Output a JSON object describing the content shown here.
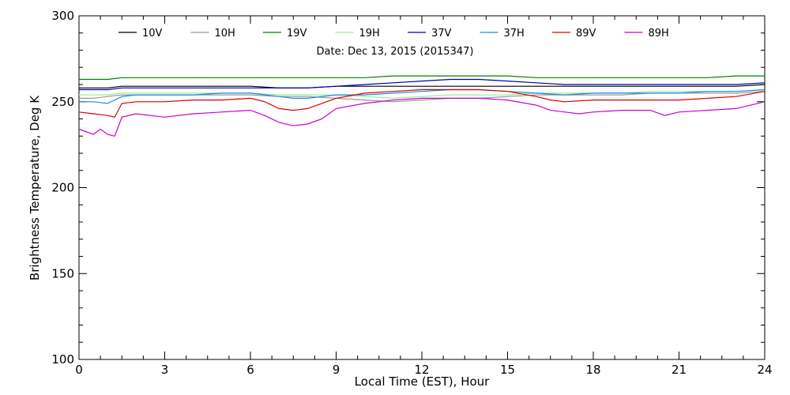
{
  "chart_data": {
    "type": "line",
    "date_label": "Date: Dec 13, 2015 (2015347)",
    "xlabel": "Local Time (EST), Hour",
    "ylabel": "Brightness Temperature, Deg K",
    "xlim": [
      0,
      24
    ],
    "ylim": [
      100,
      300
    ],
    "xticks": [
      0,
      3,
      6,
      9,
      12,
      15,
      18,
      21,
      24
    ],
    "yticks": [
      100,
      150,
      200,
      250,
      300
    ],
    "grid": false,
    "legend_position": "top",
    "series": [
      {
        "name": "10V",
        "color": "#000000",
        "x": [
          0,
          0.5,
          1,
          1.5,
          2,
          3,
          4,
          5,
          6,
          7,
          7.5,
          8,
          9,
          10,
          11,
          12,
          13,
          14,
          15,
          16,
          17,
          18,
          19,
          20,
          21,
          22,
          23,
          24
        ],
        "y": [
          258,
          258,
          258,
          259,
          259,
          259,
          259,
          259,
          259,
          258,
          258,
          258,
          259,
          259,
          259,
          259,
          259,
          259,
          259,
          259,
          259,
          259,
          259,
          259,
          259,
          259,
          259,
          260
        ]
      },
      {
        "name": "10H",
        "color": "#999999",
        "x": [
          0,
          0.5,
          1,
          1.5,
          2,
          3,
          4,
          5,
          6,
          7,
          7.5,
          8,
          9,
          10,
          11,
          12,
          13,
          14,
          15,
          16,
          17,
          18,
          19,
          20,
          21,
          22,
          23,
          24
        ],
        "y": [
          252,
          252,
          253,
          254,
          254,
          254,
          254,
          254,
          254,
          253,
          253,
          253,
          252,
          251,
          250,
          251,
          252,
          252,
          253,
          254,
          254,
          254,
          254,
          255,
          255,
          255,
          255,
          256
        ]
      },
      {
        "name": "19V",
        "color": "#008000",
        "x": [
          0,
          0.5,
          1,
          1.5,
          2,
          3,
          4,
          5,
          6,
          7,
          7.5,
          8,
          9,
          10,
          11,
          12,
          13,
          14,
          15,
          16,
          17,
          18,
          19,
          20,
          21,
          22,
          23,
          24
        ],
        "y": [
          263,
          263,
          263,
          264,
          264,
          264,
          264,
          264,
          264,
          264,
          264,
          264,
          264,
          264,
          265,
          265,
          265,
          265,
          265,
          264,
          264,
          264,
          264,
          264,
          264,
          264,
          265,
          265
        ]
      },
      {
        "name": "19H",
        "color": "#99ee99",
        "x": [
          0,
          0.5,
          1,
          1.5,
          2,
          3,
          4,
          5,
          6,
          7,
          7.5,
          8,
          9,
          10,
          11,
          12,
          13,
          14,
          15,
          16,
          17,
          18,
          19,
          20,
          21,
          22,
          23,
          24
        ],
        "y": [
          254,
          254,
          254,
          255,
          255,
          255,
          255,
          255,
          255,
          254,
          254,
          254,
          254,
          253,
          252,
          253,
          254,
          254,
          254,
          255,
          255,
          255,
          255,
          256,
          256,
          256,
          256,
          257
        ]
      },
      {
        "name": "37V",
        "color": "#0000aa",
        "x": [
          0,
          0.5,
          1,
          1.5,
          2,
          3,
          4,
          5,
          6,
          7,
          7.5,
          8,
          9,
          10,
          11,
          12,
          13,
          14,
          15,
          16,
          17,
          18,
          19,
          20,
          21,
          22,
          23,
          24
        ],
        "y": [
          257,
          257,
          257,
          258,
          258,
          258,
          258,
          258,
          258,
          258,
          258,
          258,
          259,
          260,
          261,
          262,
          263,
          263,
          262,
          261,
          260,
          260,
          260,
          260,
          260,
          260,
          260,
          261
        ]
      },
      {
        "name": "37H",
        "color": "#2288dd",
        "x": [
          0,
          0.5,
          1,
          1.5,
          2,
          3,
          4,
          5,
          6,
          7,
          7.5,
          8,
          9,
          10,
          11,
          12,
          13,
          14,
          15,
          16,
          17,
          18,
          19,
          20,
          21,
          22,
          23,
          24
        ],
        "y": [
          250,
          250,
          249,
          253,
          254,
          254,
          254,
          255,
          255,
          253,
          252,
          252,
          254,
          254,
          255,
          256,
          257,
          257,
          256,
          255,
          254,
          255,
          255,
          255,
          255,
          256,
          256,
          257
        ]
      },
      {
        "name": "89V",
        "color": "#dd0000",
        "x": [
          0,
          0.5,
          1,
          1.25,
          1.5,
          2,
          3,
          4,
          5,
          6,
          6.5,
          7,
          7.5,
          8,
          8.5,
          9,
          10,
          11,
          12,
          13,
          14,
          15,
          16,
          16.5,
          17,
          18,
          19,
          20,
          21,
          22,
          23,
          24
        ],
        "y": [
          244,
          243,
          242,
          241,
          249,
          250,
          250,
          251,
          251,
          252,
          250,
          246,
          245,
          246,
          249,
          252,
          255,
          256,
          257,
          257,
          257,
          256,
          253,
          251,
          250,
          251,
          251,
          251,
          251,
          252,
          253,
          256
        ]
      },
      {
        "name": "89H",
        "color": "#cc00cc",
        "x": [
          0,
          0.5,
          0.75,
          1,
          1.25,
          1.5,
          2,
          3,
          4,
          5,
          6,
          6.5,
          7,
          7.5,
          8,
          8.5,
          9,
          10,
          11,
          12,
          13,
          14,
          15,
          16,
          16.5,
          17,
          17.5,
          18,
          19,
          20,
          20.5,
          21,
          22,
          23,
          24
        ],
        "y": [
          234,
          231,
          234,
          231,
          230,
          241,
          243,
          241,
          243,
          244,
          245,
          242,
          238,
          236,
          237,
          240,
          246,
          249,
          251,
          252,
          252,
          252,
          251,
          248,
          245,
          244,
          243,
          244,
          245,
          245,
          242,
          244,
          245,
          246,
          250
        ]
      }
    ]
  }
}
